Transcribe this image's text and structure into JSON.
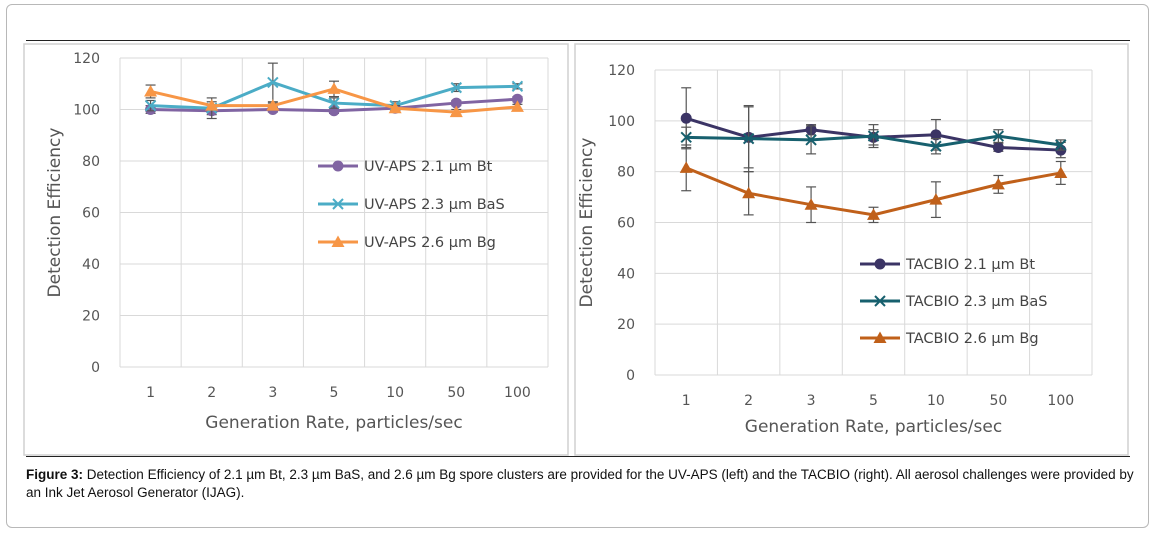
{
  "caption": {
    "label": "Figure 3:",
    "text": "Detection Efficiency of 2.1 µm Bt, 2.3 µm BaS, and 2.6 µm Bg spore clusters are provided for the UV-APS (left) and the TACBIO (right).  All aerosol challenges were provided by an Ink Jet Aerosol Generator (IJAG)."
  },
  "chart_data": [
    {
      "type": "line",
      "title": "",
      "xlabel": "Generation Rate, particles/sec",
      "ylabel": "Detection Efficiency",
      "categories": [
        "1",
        "2",
        "3",
        "5",
        "10",
        "50",
        "100"
      ],
      "ylim": [
        0,
        120
      ],
      "yticks": [
        0,
        20,
        40,
        60,
        80,
        100,
        120
      ],
      "grid": true,
      "legend": "center-right",
      "series": [
        {
          "name": "UV-APS 2.1 µm Bt",
          "color": "#8064a2",
          "marker": "circle",
          "values": [
            100,
            99.5,
            100,
            99.5,
            100.5,
            102.5,
            104
          ],
          "errors": [
            1.5,
            1.5,
            1,
            1,
            1,
            1,
            1
          ]
        },
        {
          "name": "UV-APS 2.3 µm BaS",
          "color": "#4bacc6",
          "marker": "x",
          "values": [
            101.5,
            100.5,
            110.5,
            102.5,
            101.5,
            108.5,
            109
          ],
          "errors": [
            2,
            4,
            7.5,
            2,
            1.5,
            1.5,
            1
          ]
        },
        {
          "name": "UV-APS 2.6 µm Bg",
          "color": "#f79646",
          "marker": "triangle",
          "values": [
            107,
            101.5,
            101.5,
            108,
            100.5,
            99,
            101
          ],
          "errors": [
            2.5,
            1.5,
            1,
            3,
            1,
            1,
            1
          ]
        }
      ]
    },
    {
      "type": "line",
      "title": "",
      "xlabel": "Generation Rate, particles/sec",
      "ylabel": "Detection Efficiency",
      "categories": [
        "1",
        "2",
        "3",
        "5",
        "10",
        "50",
        "100"
      ],
      "ylim": [
        0,
        120
      ],
      "yticks": [
        0,
        20,
        40,
        60,
        80,
        100,
        120
      ],
      "grid": true,
      "legend": "center-right",
      "series": [
        {
          "name": "TACBIO 2.1 µm Bt",
          "color": "#3b3465",
          "marker": "circle",
          "values": [
            101,
            93.5,
            96.5,
            93.5,
            94.5,
            89.5,
            88.5
          ],
          "errors": [
            12,
            12,
            2,
            3,
            6,
            1.5,
            3
          ]
        },
        {
          "name": "TACBIO 2.3 µm BaS",
          "color": "#17606e",
          "marker": "x",
          "values": [
            93.5,
            93,
            92.5,
            94,
            90,
            94,
            90.5
          ],
          "errors": [
            4,
            13,
            5.5,
            4.5,
            3,
            2.5,
            2
          ]
        },
        {
          "name": "TACBIO 2.6 µm Bg",
          "color": "#c0601a",
          "marker": "triangle",
          "values": [
            81.5,
            71.5,
            67,
            63,
            69,
            75,
            79.5
          ],
          "errors": [
            9,
            8.5,
            7,
            3,
            7,
            3.5,
            4.5
          ]
        }
      ]
    }
  ]
}
